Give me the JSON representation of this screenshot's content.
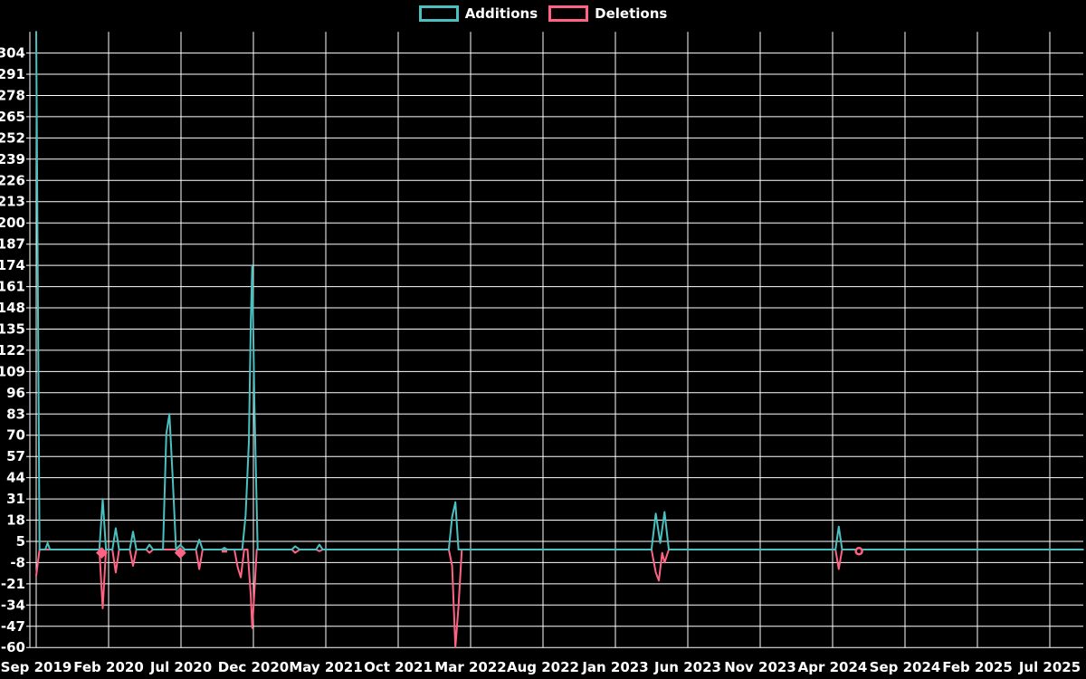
{
  "legend": {
    "additions_label": "Additions",
    "deletions_label": "Deletions"
  },
  "colors": {
    "additions": "#4bc0c0",
    "deletions": "#ff6384",
    "grid": "#ffffff",
    "background": "#000000",
    "text": "#ffffff"
  },
  "chart_data": {
    "type": "line",
    "title": "",
    "xlabel": "",
    "ylabel": "",
    "x_tick_labels": [
      "Sep 2019",
      "Feb 2020",
      "Jul 2020",
      "Dec 2020",
      "May 2021",
      "Oct 2021",
      "Mar 2022",
      "Aug 2022",
      "Jan 2023",
      "Jun 2023",
      "Nov 2023",
      "Apr 2024",
      "Sep 2024",
      "Feb 2025",
      "Jul 2025"
    ],
    "x_tick_interval_months": 5,
    "y_ticks": [
      304,
      291,
      278,
      265,
      252,
      239,
      226,
      213,
      200,
      187,
      174,
      161,
      148,
      135,
      122,
      109,
      96,
      83,
      70,
      57,
      44,
      31,
      18,
      5,
      -8,
      -21,
      -34,
      -47,
      -60
    ],
    "ylim": [
      -60,
      317
    ],
    "grid": true,
    "legend_position": "top-center",
    "series": [
      {
        "name": "Additions",
        "color_key": "additions",
        "points": [
          [
            "2019-09-01",
            317
          ],
          [
            "2019-09-08",
            0
          ],
          [
            "2019-09-20",
            0
          ],
          [
            "2019-09-25",
            4
          ],
          [
            "2019-09-30",
            0
          ],
          [
            "2020-01-12",
            0
          ],
          [
            "2020-01-19",
            31
          ],
          [
            "2020-01-26",
            0
          ],
          [
            "2020-02-09",
            0
          ],
          [
            "2020-02-16",
            13
          ],
          [
            "2020-02-23",
            0
          ],
          [
            "2020-03-15",
            0
          ],
          [
            "2020-03-22",
            11
          ],
          [
            "2020-03-29",
            0
          ],
          [
            "2020-04-19",
            0
          ],
          [
            "2020-04-26",
            3
          ],
          [
            "2020-05-03",
            0
          ],
          [
            "2020-05-24",
            0
          ],
          [
            "2020-05-31",
            71
          ],
          [
            "2020-06-07",
            83
          ],
          [
            "2020-06-14",
            44
          ],
          [
            "2020-06-21",
            0
          ],
          [
            "2020-08-02",
            0
          ],
          [
            "2020-08-09",
            6
          ],
          [
            "2020-08-16",
            0
          ],
          [
            "2020-11-08",
            0
          ],
          [
            "2020-11-15",
            21
          ],
          [
            "2020-11-22",
            66
          ],
          [
            "2020-11-26",
            139
          ],
          [
            "2020-11-29",
            174
          ],
          [
            "2020-12-03",
            90
          ],
          [
            "2020-12-10",
            0
          ],
          [
            "2021-02-21",
            0
          ],
          [
            "2021-02-28",
            2
          ],
          [
            "2021-03-07",
            0
          ],
          [
            "2021-04-11",
            0
          ],
          [
            "2021-04-18",
            3
          ],
          [
            "2021-04-25",
            0
          ],
          [
            "2022-01-16",
            0
          ],
          [
            "2022-01-23",
            20
          ],
          [
            "2022-01-30",
            29
          ],
          [
            "2022-02-06",
            0
          ],
          [
            "2023-03-16",
            0
          ],
          [
            "2023-03-25",
            22
          ],
          [
            "2023-04-04",
            4
          ],
          [
            "2023-04-13",
            23
          ],
          [
            "2023-04-22",
            0
          ],
          [
            "2024-04-07",
            0
          ],
          [
            "2024-04-14",
            14
          ],
          [
            "2024-04-21",
            0
          ],
          [
            "2025-09-10",
            0
          ]
        ]
      },
      {
        "name": "Deletions",
        "color_key": "deletions",
        "points": [
          [
            "2019-09-01",
            -16
          ],
          [
            "2019-09-08",
            0
          ],
          [
            "2020-01-12",
            0
          ],
          [
            "2020-01-19",
            -36
          ],
          [
            "2020-01-26",
            0
          ],
          [
            "2020-02-09",
            0
          ],
          [
            "2020-02-16",
            -14
          ],
          [
            "2020-02-23",
            0
          ],
          [
            "2020-03-15",
            0
          ],
          [
            "2020-03-22",
            -10
          ],
          [
            "2020-03-29",
            0
          ],
          [
            "2020-04-19",
            0
          ],
          [
            "2020-04-26",
            -2
          ],
          [
            "2020-05-03",
            0
          ],
          [
            "2020-08-02",
            0
          ],
          [
            "2020-08-09",
            -12
          ],
          [
            "2020-08-16",
            0
          ],
          [
            "2020-10-22",
            0
          ],
          [
            "2020-10-29",
            -11
          ],
          [
            "2020-11-05",
            -17
          ],
          [
            "2020-11-12",
            0
          ],
          [
            "2020-11-19",
            0
          ],
          [
            "2020-11-26",
            -28
          ],
          [
            "2020-11-29",
            -48
          ],
          [
            "2020-12-03",
            -26
          ],
          [
            "2020-12-08",
            0
          ],
          [
            "2021-02-21",
            0
          ],
          [
            "2021-02-28",
            -2
          ],
          [
            "2021-03-07",
            0
          ],
          [
            "2021-04-11",
            0
          ],
          [
            "2021-04-18",
            -1
          ],
          [
            "2021-04-25",
            0
          ],
          [
            "2022-01-16",
            0
          ],
          [
            "2022-01-23",
            -10
          ],
          [
            "2022-01-30",
            -60
          ],
          [
            "2022-02-06",
            -35
          ],
          [
            "2022-02-13",
            0
          ],
          [
            "2023-03-16",
            0
          ],
          [
            "2023-03-25",
            -14
          ],
          [
            "2023-04-01",
            -19
          ],
          [
            "2023-04-08",
            -2
          ],
          [
            "2023-04-13",
            -8
          ],
          [
            "2023-04-22",
            0
          ],
          [
            "2024-04-07",
            0
          ],
          [
            "2024-04-14",
            -12
          ],
          [
            "2024-04-21",
            0
          ],
          [
            "2025-09-10",
            0
          ]
        ]
      }
    ],
    "markers": [
      {
        "series": "deletions",
        "date": "2020-01-17",
        "value": -2,
        "shape": "diamond"
      },
      {
        "series": "additions",
        "date": "2020-06-30",
        "value": 0,
        "shape": "diamond"
      },
      {
        "series": "deletions",
        "date": "2020-06-30",
        "value": -2,
        "shape": "diamond"
      },
      {
        "series": "additions",
        "date": "2020-10-01",
        "value": 0,
        "shape": "diamond-small"
      },
      {
        "series": "deletions",
        "date": "2020-10-01",
        "value": -1,
        "shape": "dash"
      },
      {
        "series": "deletions",
        "date": "2024-05-26",
        "value": -1,
        "shape": "circle"
      }
    ]
  }
}
